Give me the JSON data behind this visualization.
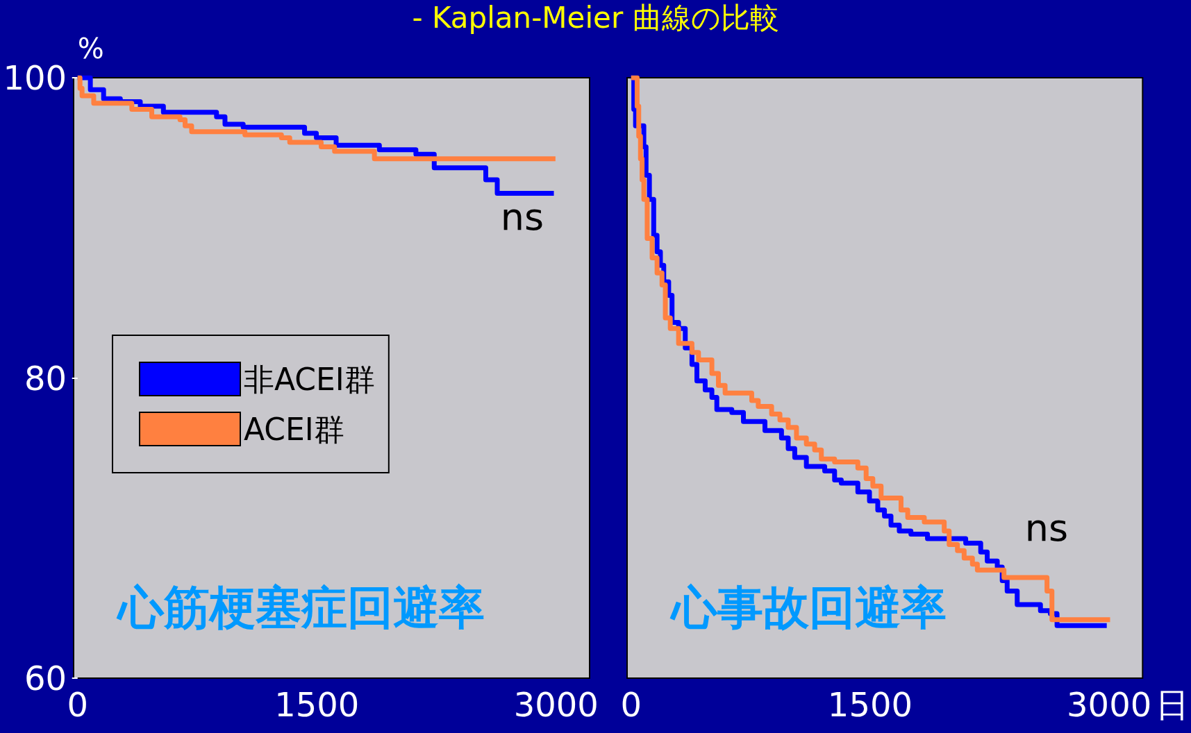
{
  "chart_data": [
    {
      "type": "step",
      "title": "- Kaplan-Meier 曲線の比較",
      "ylabel": "%",
      "xlim": [
        -25,
        3210
      ],
      "xticks": [
        0,
        1500,
        3000
      ],
      "ylim": [
        60,
        100
      ],
      "yticks": [
        60,
        80,
        100
      ],
      "grid": false,
      "legend": "left",
      "series": [
        {
          "name": "非ACEI群",
          "color": "#0000ff",
          "x": [
            0,
            80,
            163,
            268,
            393,
            538,
            871,
            924,
            1038,
            1423,
            1497,
            1621,
            1892,
            2121,
            2236,
            2559,
            2631,
            2986
          ],
          "values": [
            100,
            99.2,
            98.6,
            98.4,
            98.1,
            97.7,
            97.4,
            96.9,
            96.7,
            96.3,
            96.0,
            95.5,
            95.2,
            94.9,
            94.0,
            93.2,
            92.3,
            92.3
          ]
        },
        {
          "name": "ACEI群",
          "color": "#ff8040",
          "x": [
            0,
            15,
            28,
            101,
            340,
            465,
            642,
            674,
            715,
            1049,
            1278,
            1330,
            1527,
            1611,
            1861,
            2996
          ],
          "values": [
            100,
            99.3,
            98.8,
            98.3,
            97.9,
            97.4,
            97.2,
            96.8,
            96.4,
            96.2,
            96.0,
            95.7,
            95.4,
            95.1,
            94.6,
            94.6
          ]
        }
      ],
      "annotations": [
        "心筋梗塞症回避率",
        "ns"
      ]
    },
    {
      "type": "step",
      "xlabel": "日",
      "xlim": [
        -25,
        3210
      ],
      "xticks": [
        0,
        1500,
        3000
      ],
      "ylim": [
        60,
        100
      ],
      "yticks": [
        60,
        80,
        100
      ],
      "grid": false,
      "tick_labels": "x",
      "series": [
        {
          "color": "#0000ff",
          "x": [
            0,
            17,
            28,
            80,
            94,
            115,
            142,
            163,
            184,
            205,
            236,
            257,
            298,
            340,
            382,
            413,
            465,
            507,
            538,
            632,
            705,
            840,
            944,
            986,
            1027,
            1100,
            1215,
            1277,
            1319,
            1423,
            1496,
            1548,
            1590,
            1631,
            1683,
            1756,
            1860,
            2100,
            2194,
            2235,
            2298,
            2329,
            2360,
            2423,
            2569,
            2631,
            2673,
            2985
          ],
          "values": [
            100,
            97.9,
            96.8,
            95.4,
            93.5,
            91.9,
            89.5,
            88.4,
            87.5,
            86.4,
            85.5,
            83.7,
            83.3,
            82.0,
            80.9,
            79.8,
            79.2,
            78.7,
            77.9,
            77.7,
            77.1,
            76.5,
            76.0,
            75.3,
            74.7,
            74.1,
            73.8,
            73.2,
            73.0,
            72.4,
            71.8,
            71.2,
            70.8,
            70.2,
            69.8,
            69.6,
            69.3,
            69.0,
            68.4,
            67.8,
            67.4,
            66.5,
            65.8,
            64.9,
            64.5,
            64.3,
            63.5,
            63.5
          ]
        },
        {
          "color": "#ff8040",
          "x": [
            0,
            38,
            48,
            59,
            69,
            80,
            101,
            132,
            163,
            194,
            215,
            246,
            298,
            382,
            423,
            507,
            548,
            590,
            757,
            798,
            882,
            934,
            986,
            1038,
            1100,
            1152,
            1194,
            1277,
            1423,
            1475,
            1517,
            1569,
            1694,
            1736,
            1840,
            1965,
            1996,
            2048,
            2090,
            2142,
            2173,
            2340,
            2610,
            2641,
            3006
          ],
          "values": [
            100,
            98.1,
            96.1,
            94.6,
            93.2,
            91.9,
            89.3,
            88.0,
            87.0,
            86.2,
            84.0,
            83.3,
            82.3,
            81.7,
            81.2,
            80.3,
            79.5,
            79.0,
            78.5,
            78.1,
            77.6,
            77.2,
            76.7,
            76.0,
            75.6,
            75.2,
            74.6,
            74.4,
            74.0,
            73.3,
            72.8,
            72.0,
            71.2,
            70.7,
            70.4,
            69.8,
            68.9,
            68.5,
            68.0,
            67.6,
            67.2,
            66.7,
            65.8,
            63.9,
            63.9
          ]
        }
      ],
      "annotations": [
        "心事故回避率",
        "ns"
      ]
    }
  ]
}
